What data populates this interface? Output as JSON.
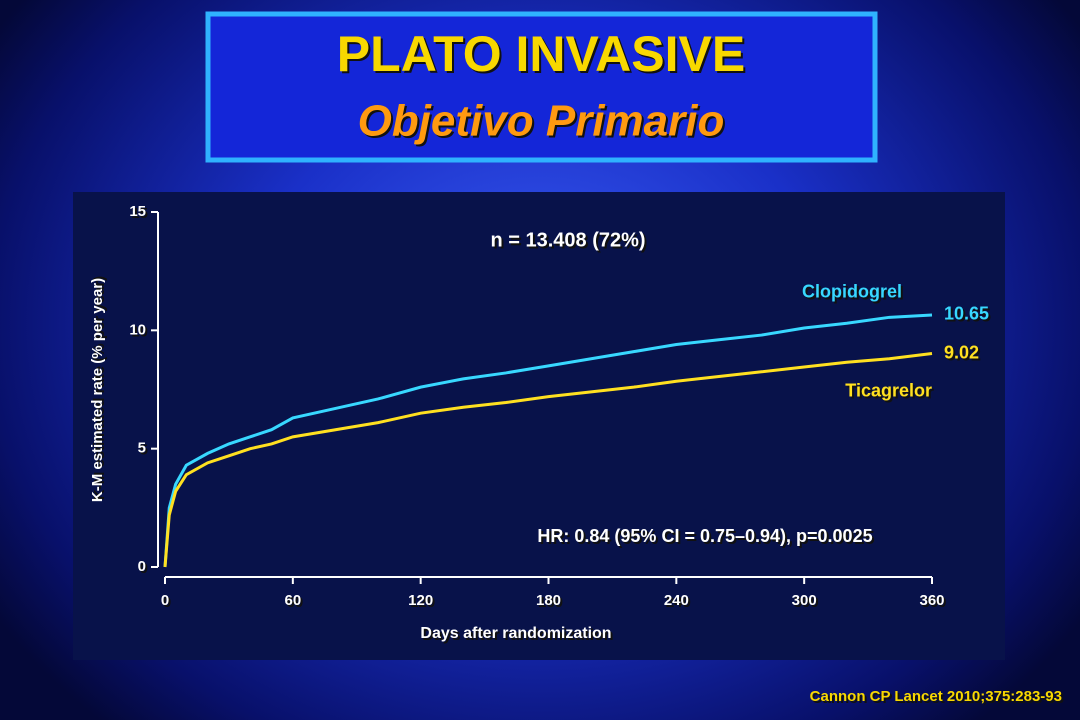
{
  "header": {
    "title": "PLATO INVASIVE",
    "subtitle": "Objetivo Primario"
  },
  "chart_data": {
    "type": "line",
    "annotation": "n = 13.408 (72%)",
    "stats": "HR: 0.84 (95% CI = 0.75–0.94), p=0.0025",
    "x_label": "Days after randomization",
    "y_label": "K-M estimated rate (% per year)",
    "x": [
      0,
      2,
      5,
      10,
      20,
      30,
      40,
      50,
      60,
      80,
      100,
      120,
      140,
      160,
      180,
      200,
      220,
      240,
      260,
      280,
      300,
      320,
      340,
      360
    ],
    "series": [
      {
        "name": "Clopidogrel",
        "color": "#38d8ff",
        "values": [
          0,
          2.5,
          3.5,
          4.3,
          4.8,
          5.2,
          5.5,
          5.8,
          6.3,
          6.7,
          7.1,
          7.6,
          7.95,
          8.2,
          8.5,
          8.8,
          9.1,
          9.4,
          9.6,
          9.8,
          10.1,
          10.3,
          10.55,
          10.65
        ]
      },
      {
        "name": "Ticagrelor",
        "color": "#ffe020",
        "values": [
          0,
          2.2,
          3.2,
          3.9,
          4.4,
          4.7,
          5.0,
          5.2,
          5.5,
          5.8,
          6.1,
          6.5,
          6.75,
          6.95,
          7.2,
          7.4,
          7.6,
          7.85,
          8.05,
          8.25,
          8.45,
          8.65,
          8.8,
          9.02
        ]
      }
    ],
    "xlim": [
      0,
      360
    ],
    "xticks": [
      0,
      60,
      120,
      180,
      240,
      300,
      360
    ],
    "ylim": [
      0,
      15
    ],
    "yticks": [
      0,
      5,
      10,
      15
    ]
  },
  "footer": {
    "source": "Cannon CP Lancet 2010;375:283-93"
  }
}
